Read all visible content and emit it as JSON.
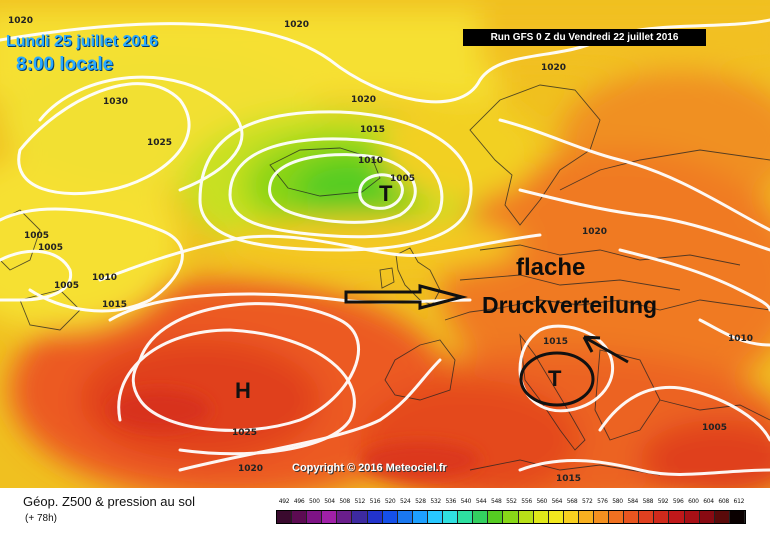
{
  "header": {
    "date_line": "Lundi 25 juillet 2016",
    "time_line": "8:00 locale",
    "run_info": "Run GFS 0 Z du Vendredi 22 juillet 2016"
  },
  "map": {
    "isobar_labels": [
      "1020",
      "1020",
      "1020",
      "1030",
      "1025",
      "1020",
      "1015",
      "1010",
      "1005",
      "1020",
      "1005",
      "1005",
      "1005",
      "1010",
      "1015",
      "1015",
      "1010",
      "1025",
      "1020",
      "1015",
      "1005"
    ],
    "centers": {
      "low_north": "T",
      "high_atlantic": "H",
      "low_circled": "T"
    },
    "annotation_line1": "flache",
    "annotation_line2": "Druckverteilung",
    "copyright": "Copyright © 2016 Meteociel.fr"
  },
  "legend": {
    "title": "Géop. Z500 & pression au sol",
    "subtitle": "(+ 78h)",
    "ticks": [
      "492",
      "496",
      "500",
      "504",
      "508",
      "512",
      "516",
      "520",
      "524",
      "528",
      "532",
      "536",
      "540",
      "544",
      "548",
      "552",
      "556",
      "560",
      "564",
      "568",
      "572",
      "576",
      "580",
      "584",
      "588",
      "592",
      "596",
      "600",
      "604",
      "608",
      "612"
    ],
    "colors": [
      "#3a0a2e",
      "#5c0b52",
      "#7e1385",
      "#a020a8",
      "#6a1e8c",
      "#3d2aa0",
      "#2233cc",
      "#1550e8",
      "#1a78f0",
      "#1ea0ff",
      "#28c8ff",
      "#30e0e0",
      "#2ee0a0",
      "#33d060",
      "#55cc22",
      "#88d818",
      "#b8e018",
      "#e0e81a",
      "#f2e81e",
      "#f8d020",
      "#f8b020",
      "#f49020",
      "#f07020",
      "#e85520",
      "#e04020",
      "#d02a1c",
      "#c0181a",
      "#a81016",
      "#880a12",
      "#5a0a0a",
      "#0a0000"
    ]
  }
}
